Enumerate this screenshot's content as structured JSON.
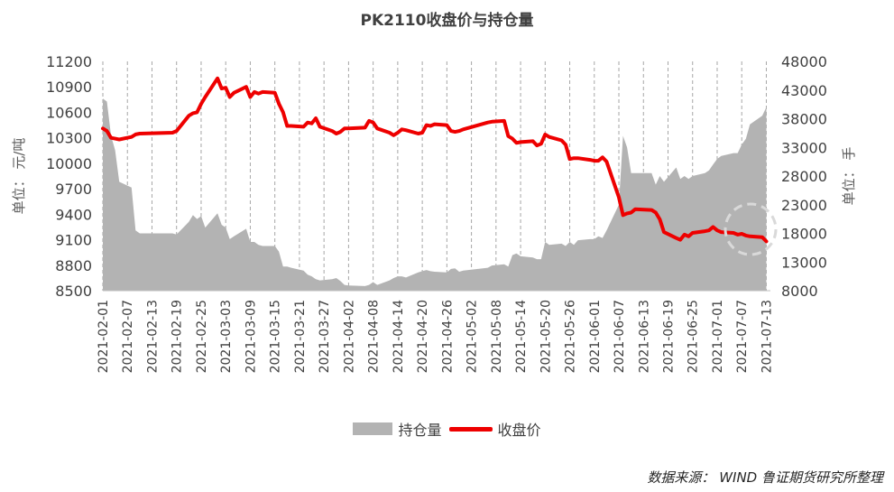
{
  "title": "PK2110收盘价与持仓量",
  "source": "数据来源：  WIND  鲁证期货研究所整理",
  "chart_data": {
    "type": "line",
    "title": "PK2110收盘价与持仓量",
    "y_left_label": "单位：  元/吨",
    "y_right_label": "单位：  手",
    "y_left_range": [
      8500,
      11200
    ],
    "y_left_ticks": [
      "8500",
      "8800",
      "9100",
      "9400",
      "9700",
      "10000",
      "10300",
      "10600",
      "10900",
      "11200"
    ],
    "y_right_range": [
      8000,
      48000
    ],
    "y_right_ticks": [
      "8000",
      "13000",
      "18000",
      "23000",
      "28000",
      "33000",
      "38000",
      "43000",
      "48000"
    ],
    "x_tick_labels": [
      "2021-02-01",
      "2021-02-07",
      "2021-02-13",
      "2021-02-19",
      "2021-02-25",
      "2021-03-03",
      "2021-03-09",
      "2021-03-15",
      "2021-03-21",
      "2021-03-27",
      "2021-04-02",
      "2021-04-08",
      "2021-04-14",
      "2021-04-20",
      "2021-04-26",
      "2021-05-02",
      "2021-05-08",
      "2021-05-14",
      "2021-05-20",
      "2021-05-26",
      "2021-06-01",
      "2021-06-07",
      "2021-06-13",
      "2021-06-19",
      "2021-06-25",
      "2021-07-01",
      "2021-07-07",
      "2021-07-13"
    ],
    "x_range": [
      "2021-02-01",
      "2021-07-14"
    ],
    "colors": {
      "area": "#b3b3b3",
      "line": "#ee0000",
      "annotation": "#d9d9d9"
    },
    "series": [
      {
        "name": "持仓量",
        "type": "area",
        "axis": "right",
        "points": [
          [
            "2021-02-01",
            41500
          ],
          [
            "2021-02-02",
            41000
          ],
          [
            "2021-02-03",
            35000
          ],
          [
            "2021-02-04",
            32500
          ],
          [
            "2021-02-05",
            27000
          ],
          [
            "2021-02-08",
            26000
          ],
          [
            "2021-02-09",
            18500
          ],
          [
            "2021-02-10",
            18000
          ],
          [
            "2021-02-18",
            18000
          ],
          [
            "2021-02-19",
            17800
          ],
          [
            "2021-02-22",
            20000
          ],
          [
            "2021-02-23",
            21200
          ],
          [
            "2021-02-24",
            20500
          ],
          [
            "2021-02-25",
            21000
          ],
          [
            "2021-02-26",
            19000
          ],
          [
            "2021-03-01",
            21500
          ],
          [
            "2021-03-02",
            19500
          ],
          [
            "2021-03-03",
            19000
          ],
          [
            "2021-03-04",
            17000
          ],
          [
            "2021-03-05",
            17500
          ],
          [
            "2021-03-08",
            18800
          ],
          [
            "2021-03-09",
            16500
          ],
          [
            "2021-03-10",
            16500
          ],
          [
            "2021-03-11",
            16000
          ],
          [
            "2021-03-12",
            15800
          ],
          [
            "2021-03-15",
            15800
          ],
          [
            "2021-03-16",
            14800
          ],
          [
            "2021-03-17",
            12200
          ],
          [
            "2021-03-18",
            12200
          ],
          [
            "2021-03-19",
            12000
          ],
          [
            "2021-03-22",
            11500
          ],
          [
            "2021-03-23",
            10800
          ],
          [
            "2021-03-24",
            10500
          ],
          [
            "2021-03-25",
            10000
          ],
          [
            "2021-03-26",
            9800
          ],
          [
            "2021-03-29",
            10000
          ],
          [
            "2021-03-30",
            10200
          ],
          [
            "2021-03-31",
            9700
          ],
          [
            "2021-04-01",
            9000
          ],
          [
            "2021-04-02",
            8900
          ],
          [
            "2021-04-06",
            8800
          ],
          [
            "2021-04-07",
            9000
          ],
          [
            "2021-04-08",
            9500
          ],
          [
            "2021-04-09",
            9000
          ],
          [
            "2021-04-12",
            9800
          ],
          [
            "2021-04-13",
            10200
          ],
          [
            "2021-04-14",
            10500
          ],
          [
            "2021-04-15",
            10500
          ],
          [
            "2021-04-16",
            10300
          ],
          [
            "2021-04-19",
            11200
          ],
          [
            "2021-04-20",
            11400
          ],
          [
            "2021-04-21",
            11600
          ],
          [
            "2021-04-22",
            11400
          ],
          [
            "2021-04-23",
            11300
          ],
          [
            "2021-04-26",
            11200
          ],
          [
            "2021-04-27",
            11800
          ],
          [
            "2021-04-28",
            11900
          ],
          [
            "2021-04-29",
            11300
          ],
          [
            "2021-04-30",
            11500
          ],
          [
            "2021-05-06",
            12000
          ],
          [
            "2021-05-07",
            12400
          ],
          [
            "2021-05-10",
            12600
          ],
          [
            "2021-05-11",
            12200
          ],
          [
            "2021-05-12",
            14200
          ],
          [
            "2021-05-13",
            14500
          ],
          [
            "2021-05-14",
            14000
          ],
          [
            "2021-05-17",
            13800
          ],
          [
            "2021-05-18",
            13500
          ],
          [
            "2021-05-19",
            13500
          ],
          [
            "2021-05-20",
            16500
          ],
          [
            "2021-05-21",
            16000
          ],
          [
            "2021-05-24",
            16200
          ],
          [
            "2021-05-25",
            15800
          ],
          [
            "2021-05-26",
            16500
          ],
          [
            "2021-05-27",
            16000
          ],
          [
            "2021-05-28",
            16800
          ],
          [
            "2021-05-31",
            17000
          ],
          [
            "2021-06-01",
            17000
          ],
          [
            "2021-06-02",
            17500
          ],
          [
            "2021-06-03",
            17200
          ],
          [
            "2021-06-04",
            18500
          ],
          [
            "2021-06-07",
            23000
          ],
          [
            "2021-06-08",
            35000
          ],
          [
            "2021-06-09",
            33000
          ],
          [
            "2021-06-10",
            28500
          ],
          [
            "2021-06-11",
            28500
          ],
          [
            "2021-06-15",
            28500
          ],
          [
            "2021-06-16",
            26500
          ],
          [
            "2021-06-17",
            28000
          ],
          [
            "2021-06-18",
            27000
          ],
          [
            "2021-06-21",
            29500
          ],
          [
            "2021-06-22",
            27500
          ],
          [
            "2021-06-23",
            28000
          ],
          [
            "2021-06-24",
            27500
          ],
          [
            "2021-06-25",
            28000
          ],
          [
            "2021-06-28",
            28500
          ],
          [
            "2021-06-29",
            29000
          ],
          [
            "2021-06-30",
            30000
          ],
          [
            "2021-07-01",
            31000
          ],
          [
            "2021-07-02",
            31500
          ],
          [
            "2021-07-05",
            32000
          ],
          [
            "2021-07-06",
            32000
          ],
          [
            "2021-07-07",
            33500
          ],
          [
            "2021-07-08",
            34500
          ],
          [
            "2021-07-09",
            37000
          ],
          [
            "2021-07-12",
            38500
          ],
          [
            "2021-07-13",
            40000
          ]
        ]
      },
      {
        "name": "收盘价",
        "type": "line",
        "axis": "left",
        "points": [
          [
            "2021-02-01",
            10410
          ],
          [
            "2021-02-02",
            10380
          ],
          [
            "2021-02-03",
            10300
          ],
          [
            "2021-02-04",
            10290
          ],
          [
            "2021-02-05",
            10280
          ],
          [
            "2021-02-08",
            10310
          ],
          [
            "2021-02-09",
            10340
          ],
          [
            "2021-02-10",
            10350
          ],
          [
            "2021-02-18",
            10360
          ],
          [
            "2021-02-19",
            10380
          ],
          [
            "2021-02-22",
            10560
          ],
          [
            "2021-02-23",
            10590
          ],
          [
            "2021-02-24",
            10600
          ],
          [
            "2021-02-25",
            10700
          ],
          [
            "2021-02-26",
            10780
          ],
          [
            "2021-03-01",
            11000
          ],
          [
            "2021-03-02",
            10880
          ],
          [
            "2021-03-03",
            10890
          ],
          [
            "2021-03-04",
            10780
          ],
          [
            "2021-03-05",
            10830
          ],
          [
            "2021-03-08",
            10900
          ],
          [
            "2021-03-09",
            10780
          ],
          [
            "2021-03-10",
            10840
          ],
          [
            "2021-03-11",
            10820
          ],
          [
            "2021-03-12",
            10840
          ],
          [
            "2021-03-15",
            10830
          ],
          [
            "2021-03-16",
            10700
          ],
          [
            "2021-03-17",
            10600
          ],
          [
            "2021-03-18",
            10440
          ],
          [
            "2021-03-19",
            10440
          ],
          [
            "2021-03-22",
            10430
          ],
          [
            "2021-03-23",
            10480
          ],
          [
            "2021-03-24",
            10470
          ],
          [
            "2021-03-25",
            10530
          ],
          [
            "2021-03-26",
            10430
          ],
          [
            "2021-03-29",
            10380
          ],
          [
            "2021-03-30",
            10350
          ],
          [
            "2021-03-31",
            10370
          ],
          [
            "2021-04-01",
            10410
          ],
          [
            "2021-04-02",
            10410
          ],
          [
            "2021-04-06",
            10420
          ],
          [
            "2021-04-07",
            10500
          ],
          [
            "2021-04-08",
            10480
          ],
          [
            "2021-04-09",
            10410
          ],
          [
            "2021-04-12",
            10360
          ],
          [
            "2021-04-13",
            10330
          ],
          [
            "2021-04-14",
            10360
          ],
          [
            "2021-04-15",
            10400
          ],
          [
            "2021-04-16",
            10390
          ],
          [
            "2021-04-19",
            10350
          ],
          [
            "2021-04-20",
            10360
          ],
          [
            "2021-04-21",
            10450
          ],
          [
            "2021-04-22",
            10440
          ],
          [
            "2021-04-23",
            10460
          ],
          [
            "2021-04-26",
            10450
          ],
          [
            "2021-04-27",
            10380
          ],
          [
            "2021-04-28",
            10370
          ],
          [
            "2021-04-29",
            10380
          ],
          [
            "2021-04-30",
            10400
          ],
          [
            "2021-05-06",
            10480
          ],
          [
            "2021-05-07",
            10490
          ],
          [
            "2021-05-10",
            10500
          ],
          [
            "2021-05-11",
            10320
          ],
          [
            "2021-05-12",
            10290
          ],
          [
            "2021-05-13",
            10240
          ],
          [
            "2021-05-14",
            10250
          ],
          [
            "2021-05-17",
            10260
          ],
          [
            "2021-05-18",
            10210
          ],
          [
            "2021-05-19",
            10230
          ],
          [
            "2021-05-20",
            10340
          ],
          [
            "2021-05-21",
            10310
          ],
          [
            "2021-05-24",
            10270
          ],
          [
            "2021-05-25",
            10220
          ],
          [
            "2021-05-26",
            10050
          ],
          [
            "2021-05-27",
            10060
          ],
          [
            "2021-05-28",
            10060
          ],
          [
            "2021-05-31",
            10040
          ],
          [
            "2021-06-01",
            10030
          ],
          [
            "2021-06-02",
            10030
          ],
          [
            "2021-06-03",
            10070
          ],
          [
            "2021-06-04",
            10020
          ],
          [
            "2021-06-07",
            9600
          ],
          [
            "2021-06-08",
            9390
          ],
          [
            "2021-06-09",
            9410
          ],
          [
            "2021-06-10",
            9420
          ],
          [
            "2021-06-11",
            9460
          ],
          [
            "2021-06-15",
            9450
          ],
          [
            "2021-06-16",
            9420
          ],
          [
            "2021-06-17",
            9340
          ],
          [
            "2021-06-18",
            9190
          ],
          [
            "2021-06-21",
            9120
          ],
          [
            "2021-06-22",
            9100
          ],
          [
            "2021-06-23",
            9160
          ],
          [
            "2021-06-24",
            9140
          ],
          [
            "2021-06-25",
            9180
          ],
          [
            "2021-06-28",
            9200
          ],
          [
            "2021-06-29",
            9210
          ],
          [
            "2021-06-30",
            9250
          ],
          [
            "2021-07-01",
            9210
          ],
          [
            "2021-07-02",
            9190
          ],
          [
            "2021-07-05",
            9180
          ],
          [
            "2021-07-06",
            9160
          ],
          [
            "2021-07-07",
            9170
          ],
          [
            "2021-07-08",
            9150
          ],
          [
            "2021-07-09",
            9140
          ],
          [
            "2021-07-12",
            9130
          ],
          [
            "2021-07-13",
            9080
          ]
        ]
      }
    ]
  }
}
